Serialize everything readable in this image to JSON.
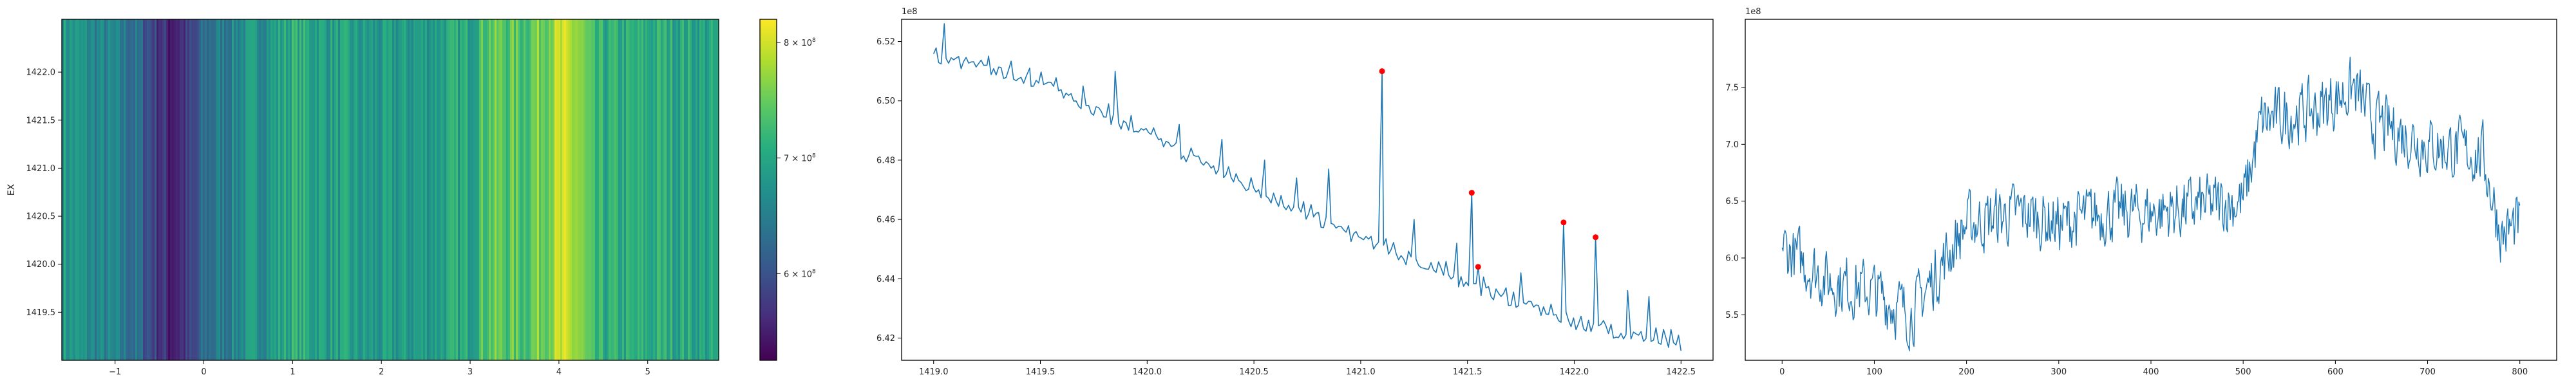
{
  "chart_data": [
    {
      "type": "heatmap",
      "ylabel": "EX",
      "xlim": [
        -1.6,
        5.8
      ],
      "ylim": [
        1419.0,
        1422.55
      ],
      "xticks": [
        "−1",
        "0",
        "1",
        "2",
        "3",
        "4",
        "5"
      ],
      "xtick_values": [
        -1,
        0,
        1,
        2,
        3,
        4,
        5
      ],
      "yticks": [
        "1419.5",
        "1420.0",
        "1420.5",
        "1421.0",
        "1421.5",
        "1422.0"
      ],
      "ytick_values": [
        1419.5,
        1420.0,
        1420.5,
        1421.0,
        1421.5,
        1422.0
      ],
      "colormap": "viridis",
      "colorbar": {
        "min": 525000000,
        "max": 820000000,
        "ticks": [
          {
            "value": 600000000,
            "mantissa": "6",
            "base": "10",
            "exp": "8",
            "suffix": "×"
          },
          {
            "value": 700000000,
            "mantissa": "7",
            "base": "10",
            "exp": "8",
            "suffix": "×"
          },
          {
            "value": 800000000,
            "mantissa": "8",
            "base": "10",
            "exp": "8",
            "suffix": "×"
          }
        ]
      },
      "column_profile_points": [
        [
          -1.6,
          0.55
        ],
        [
          -1.2,
          0.45
        ],
        [
          -0.8,
          0.38
        ],
        [
          -0.4,
          0.1
        ],
        [
          -0.1,
          0.18
        ],
        [
          0.0,
          0.35
        ],
        [
          0.4,
          0.48
        ],
        [
          0.8,
          0.55
        ],
        [
          1.0,
          0.62
        ],
        [
          1.5,
          0.55
        ],
        [
          2.0,
          0.52
        ],
        [
          2.5,
          0.55
        ],
        [
          3.0,
          0.6
        ],
        [
          3.2,
          0.75
        ],
        [
          3.6,
          0.72
        ],
        [
          4.0,
          0.88
        ],
        [
          4.2,
          0.85
        ],
        [
          4.4,
          0.62
        ],
        [
          4.8,
          0.6
        ],
        [
          5.2,
          0.62
        ],
        [
          5.8,
          0.56
        ]
      ]
    },
    {
      "type": "line",
      "series_color": "#1f77b4",
      "marker_color": "#ff0000",
      "xlim": [
        1418.85,
        1422.65
      ],
      "ylim": [
        6.4125,
        6.5275
      ],
      "y_offset_text": "1e8",
      "xticks": [
        "1419.0",
        "1419.5",
        "1420.0",
        "1420.5",
        "1421.0",
        "1421.5",
        "1422.0",
        "1422.5"
      ],
      "xtick_values": [
        1419.0,
        1419.5,
        1420.0,
        1420.5,
        1421.0,
        1421.5,
        1422.0,
        1422.5
      ],
      "yticks": [
        "6.42",
        "6.44",
        "6.46",
        "6.48",
        "6.50",
        "6.52"
      ],
      "ytick_values": [
        6.42,
        6.44,
        6.46,
        6.48,
        6.5,
        6.52
      ],
      "x_start": 1419.0,
      "x_end": 1422.5,
      "n_points": 300,
      "trend_points": [
        [
          1419.0,
          6.515
        ],
        [
          1419.5,
          6.506
        ],
        [
          1420.0,
          6.488
        ],
        [
          1420.5,
          6.47
        ],
        [
          1421.0,
          6.453
        ],
        [
          1421.5,
          6.438
        ],
        [
          1422.0,
          6.425
        ],
        [
          1422.5,
          6.417
        ]
      ],
      "spikes": [
        [
          1419.05,
          6.526
        ],
        [
          1419.25,
          6.512
        ],
        [
          1419.45,
          6.511
        ],
        [
          1419.7,
          6.505
        ],
        [
          1419.85,
          6.51
        ],
        [
          1420.15,
          6.492
        ],
        [
          1420.35,
          6.487
        ],
        [
          1420.55,
          6.48
        ],
        [
          1420.7,
          6.474
        ],
        [
          1420.85,
          6.477
        ],
        [
          1421.25,
          6.46
        ],
        [
          1421.45,
          6.452
        ],
        [
          1421.75,
          6.442
        ],
        [
          1422.25,
          6.436
        ],
        [
          1422.35,
          6.434
        ]
      ],
      "peaks": [
        [
          1421.1,
          6.51
        ],
        [
          1421.52,
          6.469
        ],
        [
          1421.55,
          6.444
        ],
        [
          1421.95,
          6.459
        ],
        [
          1422.1,
          6.454
        ]
      ]
    },
    {
      "type": "line",
      "series_color": "#1f77b4",
      "xlim": [
        -40,
        840
      ],
      "ylim": [
        5.1,
        8.1
      ],
      "y_offset_text": "1e8",
      "xticks": [
        "0",
        "100",
        "200",
        "300",
        "400",
        "500",
        "600",
        "700",
        "800"
      ],
      "xtick_values": [
        0,
        100,
        200,
        300,
        400,
        500,
        600,
        700,
        800
      ],
      "yticks": [
        "5.5",
        "6.0",
        "6.5",
        "7.0",
        "7.5"
      ],
      "ytick_values": [
        5.5,
        6.0,
        6.5,
        7.0,
        7.5
      ],
      "n_points": 801,
      "noise_amplitude": 0.32,
      "trend_points": [
        [
          0,
          6.1
        ],
        [
          50,
          5.8
        ],
        [
          100,
          5.7
        ],
        [
          140,
          5.5
        ],
        [
          170,
          5.9
        ],
        [
          200,
          6.3
        ],
        [
          260,
          6.4
        ],
        [
          300,
          6.3
        ],
        [
          350,
          6.4
        ],
        [
          400,
          6.4
        ],
        [
          450,
          6.45
        ],
        [
          500,
          6.5
        ],
        [
          520,
          7.2
        ],
        [
          580,
          7.3
        ],
        [
          620,
          7.5
        ],
        [
          640,
          7.2
        ],
        [
          700,
          7.0
        ],
        [
          760,
          6.9
        ],
        [
          780,
          6.2
        ],
        [
          800,
          6.3
        ]
      ]
    }
  ]
}
